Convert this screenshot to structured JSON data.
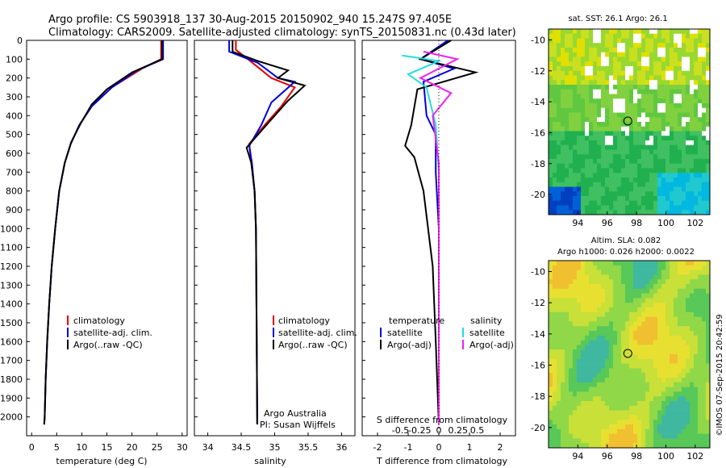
{
  "header": {
    "line1": "Argo profile: CS 5903918_137 30-Aug-2015 20150902_940 15.247S 97.405E",
    "line2": "Climatology: CARS2009. Satellite-adjusted climatology: synTS_20150831.nc (0.43d later)"
  },
  "colors": {
    "climatology": "#e00000",
    "satellite": "#0000dd",
    "argo": "#000000",
    "satellite_diff": "#22dddd",
    "argo_diff": "#ee22ee"
  },
  "depth_ticks": [
    "0",
    "100",
    "200",
    "300",
    "400",
    "500",
    "600",
    "700",
    "800",
    "900",
    "1000",
    "1100",
    "1200",
    "1300",
    "1400",
    "1500",
    "1600",
    "1700",
    "1800",
    "1900",
    "2000"
  ],
  "panel1": {
    "xlabel": "temperature (deg C)",
    "xticks": [
      "0",
      "5",
      "10",
      "15",
      "20",
      "25",
      "30"
    ],
    "legend": [
      "climatology",
      "satellite-adj. clim.",
      "Argo(..raw -QC)"
    ]
  },
  "panel2": {
    "xlabel": "salinity",
    "xticks": [
      "34",
      "34.5",
      "35",
      "35.5",
      "36"
    ],
    "legend": [
      "climatology",
      "satellite-adj. clim.",
      "Argo(..raw -QC)"
    ],
    "credit1": "Argo Australia",
    "credit2": "PI: Susan Wijffels"
  },
  "panel3": {
    "xlabel": "T difference from climatology",
    "xticks": [
      "-2",
      "-1",
      "0",
      "1",
      "2"
    ],
    "s_label": "S difference from climatology",
    "s_ticks": [
      "-0.5",
      "-0.25",
      "0",
      "0.25",
      "0.5"
    ],
    "legend_temp_title": "temperature",
    "legend_sal_title": "salinity",
    "legend_satellite": "satellite",
    "legend_argo": "Argo(-adj)"
  },
  "map1": {
    "title": "sat. SST: 26.1 Argo: 26.1",
    "xticks": [
      "94",
      "96",
      "98",
      "100",
      "102"
    ],
    "yticks": [
      "-10",
      "-12",
      "-14",
      "-16",
      "-18",
      "-20"
    ]
  },
  "map2": {
    "title1": "Altim. SLA: 0.082",
    "title2": "Argo h1000: 0.026 h2000: 0.0022",
    "xticks": [
      "94",
      "96",
      "98",
      "100",
      "102"
    ],
    "yticks": [
      "-10",
      "-12",
      "-14",
      "-16",
      "-18",
      "-20"
    ]
  },
  "footer": {
    "stamp": "©IMOS 07-Sep-2015 20:42:59"
  },
  "chart_data": [
    {
      "type": "line",
      "xlabel": "temperature (deg C)",
      "xlim": [
        -1,
        31
      ],
      "ylim": [
        2100,
        0
      ],
      "series": [
        {
          "name": "climatology",
          "points": [
            [
              25.8,
              0
            ],
            [
              25.8,
              100
            ],
            [
              22,
              150
            ],
            [
              16,
              250
            ],
            [
              12,
              350
            ],
            [
              9.5,
              450
            ],
            [
              7.8,
              550
            ],
            [
              6.6,
              650
            ],
            [
              5.5,
              800
            ],
            [
              4.7,
              1000
            ],
            [
              4.0,
              1200
            ],
            [
              3.5,
              1400
            ],
            [
              3.1,
              1600
            ],
            [
              2.8,
              1800
            ],
            [
              2.6,
              2000
            ],
            [
              2.5,
              2040
            ]
          ]
        },
        {
          "name": "satellite-adj. clim.",
          "points": [
            [
              26.2,
              0
            ],
            [
              26.2,
              100
            ],
            [
              21,
              160
            ],
            [
              16,
              250
            ],
            [
              12,
              350
            ],
            [
              9.5,
              450
            ],
            [
              7.8,
              550
            ],
            [
              6.6,
              650
            ],
            [
              5.5,
              800
            ],
            [
              4.7,
              1000
            ],
            [
              4.0,
              1200
            ],
            [
              3.5,
              1400
            ],
            [
              3.1,
              1600
            ],
            [
              2.8,
              1800
            ],
            [
              2.6,
              2000
            ],
            [
              2.5,
              2040
            ]
          ]
        },
        {
          "name": "Argo(..raw -QC)",
          "points": [
            [
              26.0,
              0
            ],
            [
              26.0,
              100
            ],
            [
              20,
              170
            ],
            [
              15,
              260
            ],
            [
              12,
              340
            ],
            [
              9.8,
              440
            ],
            [
              7.9,
              540
            ],
            [
              6.6,
              650
            ],
            [
              5.5,
              800
            ],
            [
              4.7,
              1000
            ],
            [
              4.0,
              1200
            ],
            [
              3.5,
              1400
            ],
            [
              3.1,
              1600
            ],
            [
              2.8,
              1800
            ],
            [
              2.6,
              2000
            ],
            [
              2.5,
              2040
            ]
          ]
        }
      ]
    },
    {
      "type": "line",
      "xlabel": "salinity",
      "xlim": [
        33.8,
        36.2
      ],
      "ylim": [
        2100,
        0
      ],
      "series": [
        {
          "name": "climatology",
          "points": [
            [
              34.42,
              0
            ],
            [
              34.42,
              50
            ],
            [
              34.6,
              100
            ],
            [
              34.95,
              200
            ],
            [
              35.3,
              250
            ],
            [
              35.1,
              350
            ],
            [
              34.85,
              450
            ],
            [
              34.62,
              550
            ],
            [
              34.65,
              650
            ],
            [
              34.7,
              800
            ],
            [
              34.72,
              1000
            ],
            [
              34.73,
              1500
            ],
            [
              34.74,
              2040
            ]
          ]
        },
        {
          "name": "satellite-adj. clim.",
          "points": [
            [
              34.32,
              0
            ],
            [
              34.32,
              60
            ],
            [
              34.75,
              120
            ],
            [
              35.05,
              200
            ],
            [
              35.3,
              220
            ],
            [
              34.95,
              330
            ],
            [
              34.8,
              450
            ],
            [
              34.62,
              560
            ],
            [
              34.66,
              650
            ],
            [
              34.7,
              800
            ],
            [
              34.72,
              1000
            ],
            [
              34.73,
              1500
            ],
            [
              34.74,
              2040
            ]
          ]
        },
        {
          "name": "Argo(..raw -QC)",
          "points": [
            [
              34.37,
              0
            ],
            [
              34.37,
              60
            ],
            [
              34.75,
              110
            ],
            [
              35.2,
              160
            ],
            [
              35.05,
              200
            ],
            [
              35.45,
              240
            ],
            [
              35.2,
              320
            ],
            [
              34.9,
              440
            ],
            [
              34.58,
              570
            ],
            [
              34.65,
              650
            ],
            [
              34.7,
              800
            ],
            [
              34.72,
              1000
            ],
            [
              34.73,
              1500
            ],
            [
              34.74,
              2040
            ]
          ]
        }
      ]
    },
    {
      "type": "line",
      "xlabel": "T difference from climatology",
      "xlim": [
        -2.5,
        2.5
      ],
      "ylim": [
        2100,
        0
      ],
      "series": [
        {
          "name": "temperature satellite",
          "points": [
            [
              0.3,
              0
            ],
            [
              -0.6,
              100
            ],
            [
              0.5,
              150
            ],
            [
              -0.5,
              220
            ],
            [
              -0.4,
              400
            ],
            [
              -0.1,
              500
            ],
            [
              -0.1,
              700
            ],
            [
              0,
              1000
            ],
            [
              0,
              2040
            ]
          ]
        },
        {
          "name": "temperature Argo(-adj)",
          "points": [
            [
              0.4,
              0
            ],
            [
              -0.6,
              100
            ],
            [
              1.2,
              170
            ],
            [
              -0.7,
              260
            ],
            [
              -0.9,
              450
            ],
            [
              -1.1,
              560
            ],
            [
              -0.8,
              620
            ],
            [
              -0.5,
              800
            ],
            [
              -0.2,
              1200
            ],
            [
              -0.1,
              1600
            ],
            [
              0,
              2040
            ]
          ]
        },
        {
          "name": "salinity satellite",
          "points": [
            [
              -1.2,
              80
            ],
            [
              0,
              110
            ],
            [
              -1.0,
              180
            ],
            [
              -0.4,
              250
            ],
            [
              -0.1,
              450
            ],
            [
              0,
              700
            ],
            [
              0,
              2040
            ]
          ]
        },
        {
          "name": "salinity Argo(-adj)",
          "points": [
            [
              -0.5,
              60
            ],
            [
              0.6,
              100
            ],
            [
              -0.6,
              200
            ],
            [
              0.4,
              280
            ],
            [
              -0.2,
              400
            ],
            [
              0,
              650
            ],
            [
              0,
              2040
            ]
          ]
        }
      ]
    }
  ]
}
